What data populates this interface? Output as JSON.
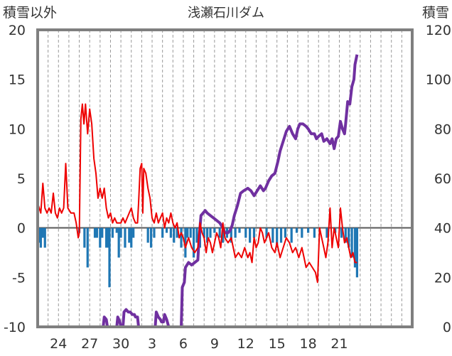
{
  "chart_data": {
    "type": "line",
    "title": "浅瀬石川ダム",
    "left_axis_title": "積雪以外",
    "right_axis_title": "積雪",
    "y_left_range": [
      -10,
      20
    ],
    "y_left_ticks": [
      "20",
      "15",
      "10",
      "5",
      "0",
      "-5",
      "-10"
    ],
    "y_right_range": [
      0,
      120
    ],
    "y_right_ticks": [
      "120",
      "100",
      "80",
      "60",
      "40",
      "20",
      "0"
    ],
    "x_range": [
      0,
      36
    ],
    "x_ticks": [
      {
        "x": 2,
        "label": "24"
      },
      {
        "x": 5,
        "label": "27"
      },
      {
        "x": 8,
        "label": "30"
      },
      {
        "x": 11,
        "label": "3"
      },
      {
        "x": 14,
        "label": "6"
      },
      {
        "x": 17,
        "label": "9"
      },
      {
        "x": 20,
        "label": "12"
      },
      {
        "x": 23,
        "label": "15"
      },
      {
        "x": 26,
        "label": "18"
      },
      {
        "x": 29,
        "label": "21"
      }
    ],
    "grid": "vertical-dashed",
    "colors": {
      "temperature": "#ee0000",
      "snow_depth": "#7030a0",
      "precipitation": "#1f77b4",
      "frame": "#7f7f7f",
      "zero_line": "#595959"
    },
    "series": [
      {
        "axis": "left",
        "style": "line",
        "color": "#ee0000",
        "points": [
          [
            0,
            2.5
          ],
          [
            0.3,
            1.5
          ],
          [
            0.5,
            4.5
          ],
          [
            0.7,
            2
          ],
          [
            0.9,
            1.5
          ],
          [
            1.1,
            2
          ],
          [
            1.3,
            1.5
          ],
          [
            1.5,
            3.5
          ],
          [
            1.7,
            1.5
          ],
          [
            1.9,
            1
          ],
          [
            2.1,
            2
          ],
          [
            2.3,
            1.5
          ],
          [
            2.5,
            2
          ],
          [
            2.7,
            6.5
          ],
          [
            2.9,
            2
          ],
          [
            3.2,
            1.5
          ],
          [
            3.5,
            1.5
          ],
          [
            3.7,
            0.5
          ],
          [
            3.9,
            -1
          ],
          [
            4.0,
            -0.5
          ],
          [
            4.15,
            11
          ],
          [
            4.3,
            12.5
          ],
          [
            4.45,
            10.5
          ],
          [
            4.6,
            12.5
          ],
          [
            4.8,
            9.5
          ],
          [
            5.0,
            12
          ],
          [
            5.2,
            10.5
          ],
          [
            5.4,
            7
          ],
          [
            5.6,
            5.5
          ],
          [
            5.8,
            3
          ],
          [
            6.0,
            4
          ],
          [
            6.2,
            3
          ],
          [
            6.4,
            4
          ],
          [
            6.6,
            2
          ],
          [
            6.8,
            1
          ],
          [
            7.0,
            1.5
          ],
          [
            7.2,
            0.5
          ],
          [
            7.4,
            1
          ],
          [
            7.6,
            0.5
          ],
          [
            7.8,
            0.5
          ],
          [
            8.0,
            0.5
          ],
          [
            8.2,
            1
          ],
          [
            8.4,
            0.5
          ],
          [
            8.6,
            1
          ],
          [
            8.8,
            1.5
          ],
          [
            9.0,
            2
          ],
          [
            9.2,
            1
          ],
          [
            9.4,
            0.5
          ],
          [
            9.6,
            0.5
          ],
          [
            9.7,
            2.5
          ],
          [
            9.85,
            6
          ],
          [
            10.0,
            6.5
          ],
          [
            10.1,
            1.5
          ],
          [
            10.2,
            6
          ],
          [
            10.4,
            5.5
          ],
          [
            10.6,
            4
          ],
          [
            10.8,
            3
          ],
          [
            11.0,
            1
          ],
          [
            11.2,
            0.5
          ],
          [
            11.4,
            1.5
          ],
          [
            11.6,
            0.5
          ],
          [
            11.8,
            1
          ],
          [
            12.0,
            1.5
          ],
          [
            12.2,
            0
          ],
          [
            12.4,
            1
          ],
          [
            12.6,
            0.5
          ],
          [
            12.8,
            1.5
          ],
          [
            13.0,
            0.5
          ],
          [
            13.2,
            0
          ],
          [
            13.4,
            0.5
          ],
          [
            13.6,
            -1
          ],
          [
            13.8,
            -0.5
          ],
          [
            14.0,
            -1
          ],
          [
            14.2,
            -2
          ],
          [
            14.5,
            -1
          ],
          [
            14.8,
            -2
          ],
          [
            15.1,
            -2.5
          ],
          [
            15.4,
            -2
          ],
          [
            15.6,
            0.5
          ],
          [
            15.8,
            -0.5
          ],
          [
            16.0,
            -1
          ],
          [
            16.2,
            -2.5
          ],
          [
            16.4,
            -1
          ],
          [
            16.6,
            -1.5
          ],
          [
            16.8,
            -2.5
          ],
          [
            17.0,
            -1.5
          ],
          [
            17.2,
            -0.5
          ],
          [
            17.4,
            -1
          ],
          [
            17.6,
            -2
          ],
          [
            17.8,
            0.5
          ],
          [
            18.0,
            -1
          ],
          [
            18.3,
            -1.5
          ],
          [
            18.6,
            -1
          ],
          [
            18.8,
            -2
          ],
          [
            19.0,
            -3
          ],
          [
            19.3,
            -2.5
          ],
          [
            19.6,
            -3
          ],
          [
            19.9,
            -2
          ],
          [
            20.2,
            -3
          ],
          [
            20.4,
            -2.5
          ],
          [
            20.6,
            -3.5
          ],
          [
            20.8,
            -1
          ],
          [
            21.0,
            -2
          ],
          [
            21.2,
            -1.5
          ],
          [
            21.4,
            0
          ],
          [
            21.6,
            -0.5
          ],
          [
            21.8,
            -1.5
          ],
          [
            22.0,
            -1
          ],
          [
            22.2,
            -0.5
          ],
          [
            22.5,
            -2
          ],
          [
            22.8,
            -2.5
          ],
          [
            23.0,
            -1.5
          ],
          [
            23.3,
            -3
          ],
          [
            23.6,
            -2
          ],
          [
            23.9,
            -1
          ],
          [
            24.2,
            -1.5
          ],
          [
            24.5,
            -2.5
          ],
          [
            24.8,
            -2
          ],
          [
            25.1,
            -3
          ],
          [
            25.4,
            -2
          ],
          [
            25.6,
            -3
          ],
          [
            25.8,
            -4
          ],
          [
            26.1,
            -3.5
          ],
          [
            26.4,
            -4
          ],
          [
            26.7,
            -4.5
          ],
          [
            26.9,
            -5.5
          ],
          [
            27.1,
            0
          ],
          [
            27.3,
            -1
          ],
          [
            27.5,
            -2
          ],
          [
            27.7,
            -3
          ],
          [
            27.9,
            -1.5
          ],
          [
            28.1,
            2
          ],
          [
            28.3,
            -2
          ],
          [
            28.5,
            0
          ],
          [
            28.7,
            -1
          ],
          [
            28.9,
            -2
          ],
          [
            29.1,
            2
          ],
          [
            29.3,
            0
          ],
          [
            29.5,
            -1.5
          ],
          [
            29.7,
            -1
          ],
          [
            29.9,
            -2
          ],
          [
            30.1,
            -3
          ],
          [
            30.3,
            -2.5
          ],
          [
            30.5,
            -3.5
          ],
          [
            30.7,
            -3.5
          ]
        ]
      },
      {
        "axis": "right",
        "style": "line",
        "color": "#7030a0",
        "points": [
          [
            0,
            0
          ],
          [
            6.3,
            0
          ],
          [
            6.4,
            4
          ],
          [
            6.6,
            3
          ],
          [
            6.7,
            0
          ],
          [
            7.6,
            0
          ],
          [
            7.7,
            4
          ],
          [
            7.9,
            2
          ],
          [
            8.0,
            0
          ],
          [
            8.2,
            0
          ],
          [
            8.3,
            6
          ],
          [
            8.5,
            7
          ],
          [
            8.7,
            6
          ],
          [
            8.9,
            6
          ],
          [
            9.1,
            5
          ],
          [
            9.3,
            5
          ],
          [
            9.4,
            4
          ],
          [
            9.6,
            4
          ],
          [
            9.7,
            0
          ],
          [
            11.3,
            0
          ],
          [
            11.4,
            6
          ],
          [
            11.6,
            4
          ],
          [
            11.8,
            3
          ],
          [
            11.9,
            2
          ],
          [
            12.1,
            2
          ],
          [
            12.2,
            5
          ],
          [
            12.4,
            3
          ],
          [
            12.6,
            0
          ],
          [
            13.8,
            0
          ],
          [
            13.9,
            16
          ],
          [
            14.1,
            18
          ],
          [
            14.2,
            24
          ],
          [
            14.5,
            26
          ],
          [
            14.8,
            25
          ],
          [
            15.1,
            26
          ],
          [
            15.4,
            27
          ],
          [
            15.5,
            35
          ],
          [
            15.7,
            45
          ],
          [
            15.9,
            46
          ],
          [
            16.1,
            47
          ],
          [
            16.3,
            46
          ],
          [
            16.6,
            45
          ],
          [
            16.9,
            44
          ],
          [
            17.2,
            43
          ],
          [
            17.5,
            42
          ],
          [
            17.8,
            40
          ],
          [
            18.0,
            38
          ],
          [
            18.3,
            38
          ],
          [
            18.5,
            39
          ],
          [
            18.7,
            41
          ],
          [
            18.9,
            45
          ],
          [
            19.2,
            49
          ],
          [
            19.5,
            54
          ],
          [
            19.8,
            55
          ],
          [
            20.2,
            56
          ],
          [
            20.5,
            55
          ],
          [
            20.8,
            53
          ],
          [
            21.1,
            55
          ],
          [
            21.4,
            57
          ],
          [
            21.7,
            55
          ],
          [
            21.9,
            56
          ],
          [
            22.2,
            59
          ],
          [
            22.5,
            61
          ],
          [
            22.8,
            62
          ],
          [
            23.1,
            67
          ],
          [
            23.3,
            71
          ],
          [
            23.6,
            75
          ],
          [
            23.9,
            79
          ],
          [
            24.2,
            81
          ],
          [
            24.5,
            78
          ],
          [
            24.8,
            76
          ],
          [
            25.0,
            80
          ],
          [
            25.2,
            82
          ],
          [
            25.5,
            82
          ],
          [
            25.8,
            81
          ],
          [
            26.0,
            80
          ],
          [
            26.3,
            78
          ],
          [
            26.6,
            78
          ],
          [
            26.8,
            76
          ],
          [
            27.0,
            77
          ],
          [
            27.3,
            78
          ],
          [
            27.5,
            75
          ],
          [
            27.8,
            76
          ],
          [
            28.1,
            74
          ],
          [
            28.3,
            76
          ],
          [
            28.5,
            72
          ],
          [
            28.7,
            76
          ],
          [
            28.9,
            77
          ],
          [
            29.0,
            80
          ],
          [
            29.1,
            83
          ],
          [
            29.3,
            80
          ],
          [
            29.5,
            78
          ],
          [
            29.6,
            82
          ],
          [
            29.8,
            91
          ],
          [
            30.0,
            90
          ],
          [
            30.2,
            97
          ],
          [
            30.4,
            100
          ],
          [
            30.5,
            106
          ],
          [
            30.7,
            110
          ]
        ]
      },
      {
        "axis": "left",
        "style": "bar",
        "color": "#1f77b4",
        "points": [
          [
            0.1,
            -1.5
          ],
          [
            0.3,
            -2
          ],
          [
            0.5,
            -1
          ],
          [
            0.7,
            -2
          ],
          [
            4.0,
            -0.5
          ],
          [
            4.5,
            -2
          ],
          [
            4.8,
            -4
          ],
          [
            5.5,
            -1
          ],
          [
            5.7,
            -1
          ],
          [
            6.0,
            -2
          ],
          [
            6.2,
            -1
          ],
          [
            6.6,
            -2
          ],
          [
            6.8,
            -2
          ],
          [
            6.9,
            -6
          ],
          [
            7.2,
            -1
          ],
          [
            7.6,
            -0.5
          ],
          [
            7.8,
            -3
          ],
          [
            8.0,
            -1
          ],
          [
            8.4,
            -2
          ],
          [
            8.8,
            -1.5
          ],
          [
            9.0,
            -2
          ],
          [
            9.2,
            -1
          ],
          [
            10.6,
            -1.5
          ],
          [
            10.9,
            -2
          ],
          [
            11.2,
            -1
          ],
          [
            12.0,
            -1
          ],
          [
            12.4,
            -0.5
          ],
          [
            12.8,
            -1
          ],
          [
            13.1,
            -1.5
          ],
          [
            13.4,
            -1
          ],
          [
            13.8,
            -2
          ],
          [
            14.2,
            -3
          ],
          [
            14.4,
            -1
          ],
          [
            14.7,
            -1
          ],
          [
            15.0,
            -3
          ],
          [
            15.3,
            -1.5
          ],
          [
            15.6,
            -2
          ],
          [
            16.0,
            -1
          ],
          [
            16.3,
            -1.5
          ],
          [
            16.6,
            -1
          ],
          [
            17.0,
            -0.5
          ],
          [
            17.5,
            -1
          ],
          [
            17.8,
            -1.5
          ],
          [
            18.2,
            -1
          ],
          [
            18.6,
            -1.5
          ],
          [
            19.0,
            -1
          ],
          [
            19.4,
            -0.5
          ],
          [
            20.0,
            -1
          ],
          [
            20.4,
            -1.5
          ],
          [
            20.8,
            -1
          ],
          [
            22.0,
            -1
          ],
          [
            22.6,
            -1.5
          ],
          [
            23.0,
            -2
          ],
          [
            23.4,
            -1.5
          ],
          [
            23.8,
            -1
          ],
          [
            24.4,
            -1.5
          ],
          [
            24.9,
            -0.5
          ],
          [
            25.4,
            -1
          ],
          [
            26.0,
            -0.5
          ],
          [
            26.6,
            -1
          ],
          [
            27.8,
            -1
          ],
          [
            28.6,
            -0.5
          ],
          [
            29.2,
            -1
          ],
          [
            29.6,
            -1.5
          ],
          [
            29.9,
            -2
          ],
          [
            30.2,
            -3
          ],
          [
            30.5,
            -4
          ],
          [
            30.7,
            -5
          ]
        ]
      }
    ]
  }
}
